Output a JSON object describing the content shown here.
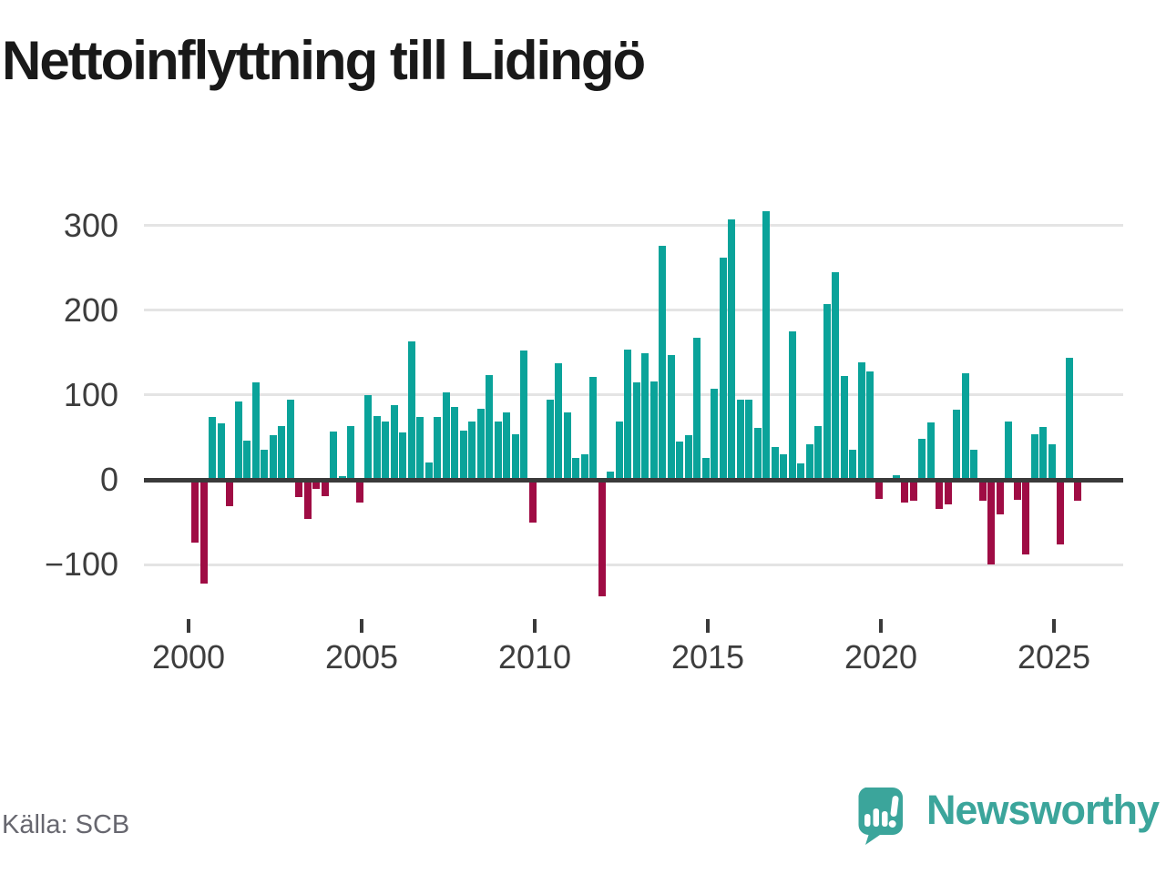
{
  "title": "Nettoinflyttning till Lidingö",
  "source": "Källa: SCB",
  "branding": {
    "name": "Newsworthy",
    "color": "#3ba59b",
    "icon": "newsworthy-speech-bubble-bar-chart-icon"
  },
  "colors": {
    "positive_bar": "#0aa39a",
    "negative_bar": "#9f0c44",
    "gridline": "#e4e4e4",
    "zero_axis": "#3a3a3a",
    "axis_text": "#3d3d3d",
    "title_text": "#191919",
    "source_text": "#67676f"
  },
  "chart_data": {
    "type": "bar",
    "title": "Nettoinflyttning till Lidingö",
    "xlabel": "",
    "ylabel": "",
    "grid": true,
    "legend": false,
    "ylim": [
      -150,
      330
    ],
    "yticks": [
      300,
      200,
      100,
      0,
      -100
    ],
    "xticks": [
      2000,
      2005,
      2010,
      2015,
      2020,
      2025
    ],
    "x": [
      "2000Q1",
      "2000Q2",
      "2000Q3",
      "2000Q4",
      "2001Q1",
      "2001Q2",
      "2001Q3",
      "2001Q4",
      "2002Q1",
      "2002Q2",
      "2002Q3",
      "2002Q4",
      "2003Q1",
      "2003Q2",
      "2003Q3",
      "2003Q4",
      "2004Q1",
      "2004Q2",
      "2004Q3",
      "2004Q4",
      "2005Q1",
      "2005Q2",
      "2005Q3",
      "2005Q4",
      "2006Q1",
      "2006Q2",
      "2006Q3",
      "2006Q4",
      "2007Q1",
      "2007Q2",
      "2007Q3",
      "2007Q4",
      "2008Q1",
      "2008Q2",
      "2008Q3",
      "2008Q4",
      "2009Q1",
      "2009Q2",
      "2009Q3",
      "2009Q4",
      "2010Q1",
      "2010Q2",
      "2010Q3",
      "2010Q4",
      "2011Q1",
      "2011Q2",
      "2011Q3",
      "2011Q4",
      "2012Q1",
      "2012Q2",
      "2012Q3",
      "2012Q4",
      "2013Q1",
      "2013Q2",
      "2013Q3",
      "2013Q4",
      "2014Q1",
      "2014Q2",
      "2014Q3",
      "2014Q4",
      "2015Q1",
      "2015Q2",
      "2015Q3",
      "2015Q4",
      "2016Q1",
      "2016Q2",
      "2016Q3",
      "2016Q4",
      "2017Q1",
      "2017Q2",
      "2017Q3",
      "2017Q4",
      "2018Q1",
      "2018Q2",
      "2018Q3",
      "2018Q4",
      "2019Q1",
      "2019Q2",
      "2019Q3",
      "2019Q4",
      "2020Q1",
      "2020Q2",
      "2020Q3",
      "2020Q4",
      "2021Q1",
      "2021Q2",
      "2021Q3",
      "2021Q4",
      "2022Q1",
      "2022Q2",
      "2022Q3",
      "2022Q4",
      "2023Q1",
      "2023Q2",
      "2023Q3",
      "2023Q4",
      "2024Q1",
      "2024Q2",
      "2024Q3",
      "2024Q4",
      "2025Q1",
      "2025Q2",
      "2025Q3"
    ],
    "values": [
      -72,
      -120,
      74,
      67,
      -29,
      92,
      46,
      115,
      35,
      53,
      63,
      95,
      -18,
      -44,
      -9,
      -17,
      57,
      4,
      63,
      -25,
      100,
      75,
      69,
      88,
      56,
      163,
      74,
      20,
      74,
      103,
      86,
      58,
      69,
      84,
      123,
      69,
      79,
      54,
      152,
      -48,
      0,
      94,
      137,
      80,
      26,
      30,
      121,
      -135,
      10,
      69,
      153,
      115,
      149,
      116,
      276,
      147,
      45,
      53,
      167,
      26,
      107,
      262,
      307,
      94,
      95,
      61,
      317,
      39,
      30,
      175,
      19,
      42,
      63,
      207,
      245,
      122,
      35,
      139,
      128,
      -20,
      1,
      5,
      -25,
      -23,
      48,
      68,
      -32,
      -27,
      83,
      126,
      36,
      -22,
      -98,
      -39,
      69,
      -21,
      -86,
      54,
      62,
      42,
      -74,
      144,
      -23
    ]
  }
}
